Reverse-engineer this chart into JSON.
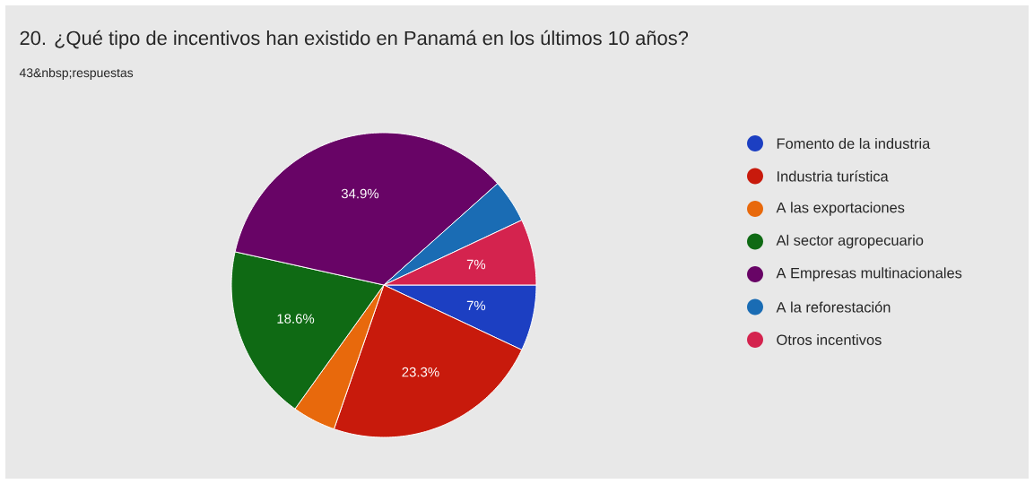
{
  "chart_data": {
    "type": "pie",
    "title": "20. ¿Qué tipo de incentivos han existido en Panamá en los últimos 10 años?",
    "subtitle": "43&nbsp;respuestas",
    "categories": [
      "Fomento de la industria",
      "Industria turística",
      "A las exportaciones",
      "Al sector agropecuario",
      "A Empresas multinacionales",
      "A la reforestación",
      "Otros incentivos"
    ],
    "values": [
      7,
      23.3,
      4.6,
      18.6,
      34.9,
      4.6,
      7
    ],
    "value_labels": [
      "7%",
      "23.3%",
      null,
      "18.6%",
      "34.9%",
      null,
      "7%"
    ],
    "colors": [
      "#1c3fc2",
      "#c81a0c",
      "#e8690c",
      "#0f6a14",
      "#680466",
      "#1a6cb4",
      "#d4234e"
    ],
    "legend": "right"
  }
}
